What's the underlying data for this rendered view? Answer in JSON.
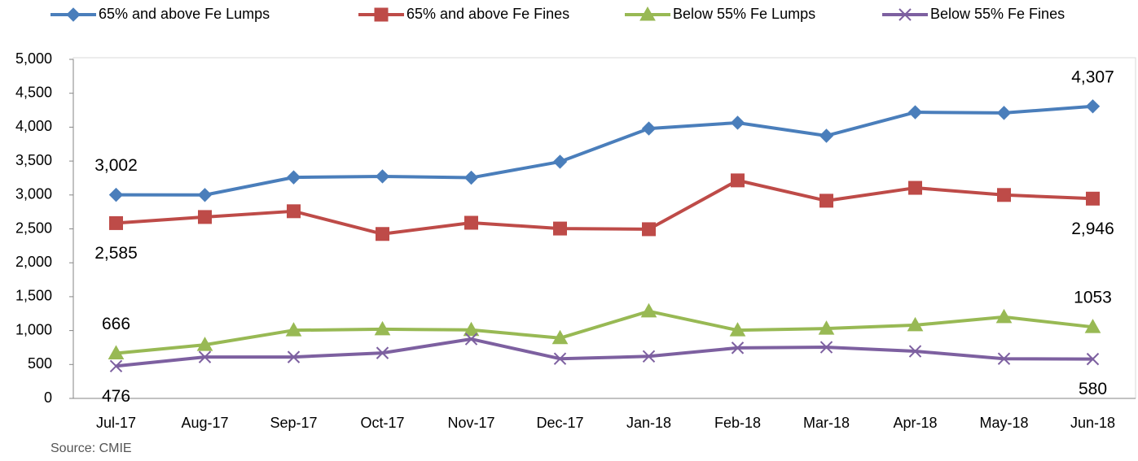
{
  "chart_data": {
    "type": "line",
    "categories": [
      "Jul-17",
      "Aug-17",
      "Sep-17",
      "Oct-17",
      "Nov-17",
      "Dec-17",
      "Jan-18",
      "Feb-18",
      "Mar-18",
      "Apr-18",
      "May-18",
      "Jun-18"
    ],
    "series": [
      {
        "name": "65% and above Fe Lumps",
        "color": "#4a7ebb",
        "marker": "diamond",
        "values": [
          3002,
          3000,
          3260,
          3274,
          3255,
          3490,
          3980,
          4065,
          3873,
          4220,
          4210,
          4307
        ],
        "value_labels": [
          "3,002",
          null,
          null,
          null,
          null,
          null,
          null,
          null,
          null,
          null,
          null,
          "4,307"
        ]
      },
      {
        "name": "65% and above Fe Fines",
        "color": "#be4b48",
        "marker": "square",
        "values": [
          2585,
          2675,
          2760,
          2425,
          2590,
          2505,
          2495,
          3215,
          2915,
          3105,
          3000,
          2946
        ],
        "value_labels": [
          "2,585",
          null,
          null,
          null,
          null,
          null,
          null,
          null,
          null,
          null,
          null,
          "2,946"
        ]
      },
      {
        "name": "Below 55% Fe Lumps",
        "color": "#98b954",
        "marker": "triangle",
        "values": [
          666,
          790,
          1005,
          1020,
          1010,
          890,
          1285,
          1005,
          1030,
          1080,
          1200,
          1053
        ],
        "value_labels": [
          "666",
          null,
          null,
          null,
          null,
          null,
          null,
          null,
          null,
          null,
          null,
          "1053"
        ]
      },
      {
        "name": "Below 55% Fe Fines",
        "color": "#7d60a0",
        "marker": "x",
        "values": [
          476,
          610,
          610,
          670,
          875,
          585,
          620,
          745,
          755,
          695,
          585,
          580
        ],
        "value_labels": [
          "476",
          null,
          null,
          null,
          null,
          null,
          null,
          null,
          null,
          null,
          null,
          "580"
        ]
      }
    ],
    "ylim": [
      0,
      5000
    ],
    "yticks": [
      0,
      500,
      {
        "value": 1000,
        "label": "1,000"
      },
      {
        "value": 1500,
        "label": "1,500"
      },
      {
        "value": 2000,
        "label": "2,000"
      },
      {
        "value": 2500,
        "label": "2,500"
      },
      {
        "value": 3000,
        "label": "3,000"
      },
      {
        "value": 3500,
        "label": "3,500"
      },
      {
        "value": 4000,
        "label": "4,000"
      },
      {
        "value": 4500,
        "label": "4,500"
      },
      {
        "value": 5000,
        "label": "5,000"
      }
    ],
    "legend": "top",
    "source": "Source: CMIE"
  }
}
